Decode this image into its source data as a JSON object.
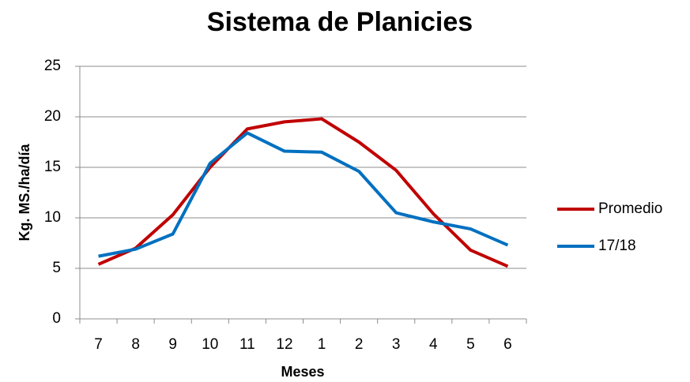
{
  "chart_data": {
    "type": "line",
    "title": "Sistema de Planicies",
    "x_label": "Meses",
    "y_label": "Kg. MS./ha/día",
    "categories": [
      "7",
      "8",
      "9",
      "10",
      "11",
      "12",
      "1",
      "2",
      "3",
      "4",
      "5",
      "6"
    ],
    "series": [
      {
        "name": "Promedio",
        "color": "#c00000",
        "values": [
          5.4,
          7.0,
          10.3,
          15.0,
          18.8,
          19.5,
          19.8,
          17.5,
          14.7,
          10.4,
          6.8,
          5.2
        ]
      },
      {
        "name": "17/18",
        "color": "#0070c0",
        "values": [
          6.2,
          6.9,
          8.4,
          15.4,
          18.4,
          16.6,
          16.5,
          14.6,
          10.5,
          9.6,
          8.9,
          7.3
        ]
      }
    ],
    "ylim": [
      0,
      25
    ],
    "yticks": [
      0,
      5,
      10,
      15,
      20,
      25
    ],
    "grid": true
  }
}
